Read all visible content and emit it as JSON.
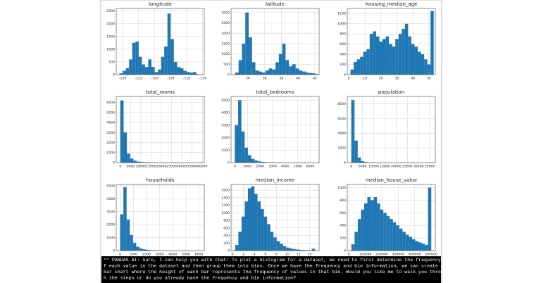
{
  "chart_data": [
    {
      "type": "histogram",
      "title": "longitude",
      "color": "#1f77b4",
      "grid": true,
      "bins": [
        -124.4,
        -124,
        -123.6,
        -123.2,
        -122.8,
        -122.4,
        -122,
        -121.6,
        -121.2,
        -120.8,
        -120.4,
        -120,
        -119.6,
        -119.2,
        -118.8,
        -118.4,
        -118,
        -117.6,
        -117.2,
        -116.8,
        -116.4,
        -116,
        -115.6,
        -115.2,
        -114.8,
        -114.4
      ],
      "values": [
        50,
        150,
        250,
        600,
        1250,
        1300,
        700,
        400,
        300,
        600,
        300,
        100,
        200,
        700,
        1100,
        2400,
        1400,
        500,
        300,
        250,
        150,
        100,
        80,
        100,
        20
      ],
      "xlim": [
        -124.8,
        -113.8
      ],
      "xticks": [
        -124,
        -122,
        -120,
        -118,
        -116,
        -114
      ],
      "ylim": [
        0,
        2600
      ],
      "yticks": [
        0,
        500,
        1000,
        1500,
        2000,
        2500
      ]
    },
    {
      "type": "histogram",
      "title": "latitude",
      "color": "#1f77b4",
      "grid": true,
      "bins": [
        32.5,
        32.9,
        33.3,
        33.7,
        34.1,
        34.5,
        34.9,
        35.3,
        35.7,
        36.1,
        36.5,
        36.9,
        37.3,
        37.7,
        38.1,
        38.5,
        38.9,
        39.3,
        39.7,
        40.1,
        40.5,
        40.9,
        41.3,
        41.7,
        42.1,
        42.5
      ],
      "values": [
        100,
        700,
        1500,
        3000,
        1800,
        600,
        200,
        150,
        100,
        200,
        300,
        250,
        600,
        1000,
        1500,
        700,
        400,
        500,
        300,
        200,
        150,
        100,
        80,
        60,
        30
      ],
      "xlim": [
        32,
        42.5
      ],
      "xticks": [
        34,
        36,
        38,
        40,
        42
      ],
      "ylim": [
        0,
        3200
      ],
      "yticks": [
        0,
        500,
        1000,
        1500,
        2000,
        2500,
        3000
      ]
    },
    {
      "type": "histogram",
      "title": "housing_median_age",
      "color": "#1f77b4",
      "grid": true,
      "bins": [
        1,
        3,
        5,
        7,
        9,
        11,
        13,
        15,
        17,
        19,
        21,
        23,
        25,
        27,
        29,
        31,
        33,
        35,
        37,
        39,
        41,
        43,
        45,
        47,
        49,
        51,
        53
      ],
      "values": [
        100,
        250,
        300,
        350,
        450,
        500,
        800,
        850,
        750,
        650,
        700,
        750,
        600,
        550,
        700,
        800,
        900,
        1000,
        750,
        600,
        550,
        450,
        400,
        300,
        200,
        1250
      ],
      "xlim": [
        -1,
        54
      ],
      "xticks": [
        0,
        10,
        20,
        30,
        40,
        50
      ],
      "ylim": [
        0,
        1300
      ],
      "yticks": [
        0,
        200,
        400,
        600,
        800,
        1000,
        1200
      ]
    },
    {
      "type": "histogram",
      "title": "total_rooms",
      "color": "#1f77b4",
      "grid": true,
      "bins": [
        0,
        1600,
        3200,
        4800,
        6400,
        8000,
        9600,
        11200,
        12800,
        14400,
        16000,
        17600,
        19200,
        20800,
        22400,
        24000,
        25600,
        27200,
        28800,
        30400,
        32000,
        33600,
        35200,
        36800,
        38400,
        40000
      ],
      "values": [
        6200,
        3000,
        900,
        400,
        200,
        100,
        70,
        40,
        30,
        20,
        10,
        8,
        5,
        4,
        3,
        2,
        2,
        1,
        1,
        1,
        0,
        0,
        0,
        0,
        1
      ],
      "xlim": [
        -2000,
        41000
      ],
      "xticks": [
        0,
        5000,
        10000,
        15000,
        20000,
        25000,
        30000,
        35000,
        40000
      ],
      "ylim": [
        0,
        6600
      ],
      "yticks": [
        0,
        1000,
        2000,
        3000,
        4000,
        5000,
        6000
      ]
    },
    {
      "type": "histogram",
      "title": "total_bedrooms",
      "color": "#1f77b4",
      "grid": true,
      "bins": [
        0,
        260,
        520,
        780,
        1040,
        1300,
        1560,
        1820,
        2080,
        2340,
        2600,
        2860,
        3120,
        3380,
        3640,
        3900,
        4160,
        4420,
        4680,
        4940,
        5200,
        5460,
        5720,
        5980,
        6240,
        6500
      ],
      "values": [
        3000,
        5000,
        2500,
        1200,
        600,
        300,
        180,
        100,
        60,
        40,
        25,
        15,
        10,
        8,
        5,
        3,
        2,
        2,
        1,
        1,
        0,
        0,
        0,
        0,
        1
      ],
      "xlim": [
        -300,
        6700
      ],
      "xticks": [
        0,
        1000,
        2000,
        3000,
        4000,
        5000,
        6000
      ],
      "ylim": [
        0,
        5300
      ],
      "yticks": [
        0,
        1000,
        2000,
        3000,
        4000,
        5000
      ]
    },
    {
      "type": "histogram",
      "title": "population",
      "color": "#1f77b4",
      "grid": true,
      "bins": [
        0,
        1428,
        2856,
        4284,
        5712,
        7140,
        8568,
        9996,
        11424,
        12852,
        14280,
        15708,
        17136,
        18564,
        19992,
        21420,
        22848,
        24276,
        25704,
        27132,
        28560,
        29988,
        31416,
        32844,
        34272,
        35700
      ],
      "values": [
        8500,
        3000,
        700,
        200,
        80,
        40,
        20,
        10,
        5,
        3,
        2,
        1,
        1,
        1,
        0,
        0,
        0,
        0,
        0,
        0,
        0,
        0,
        0,
        0,
        1
      ],
      "xlim": [
        -1800,
        37500
      ],
      "xticks": [
        0,
        5000,
        10000,
        15000,
        20000,
        25000,
        30000,
        35000
      ],
      "ylim": [
        0,
        9000
      ],
      "yticks": [
        0,
        2000,
        4000,
        6000,
        8000
      ]
    },
    {
      "type": "histogram",
      "title": "households",
      "color": "#1f77b4",
      "grid": true,
      "bins": [
        0,
        244,
        488,
        732,
        976,
        1220,
        1464,
        1708,
        1952,
        2196,
        2440,
        2684,
        2928,
        3172,
        3416,
        3660,
        3904,
        4148,
        4392,
        4636,
        4880,
        5124,
        5368,
        5612,
        5856,
        6100
      ],
      "values": [
        2800,
        4900,
        2400,
        1200,
        600,
        300,
        170,
        100,
        60,
        40,
        25,
        15,
        10,
        7,
        5,
        3,
        2,
        2,
        1,
        1,
        0,
        0,
        0,
        0,
        1
      ],
      "xlim": [
        -300,
        6400
      ],
      "xticks": [
        0,
        1000,
        2000,
        3000,
        4000,
        5000,
        6000
      ],
      "ylim": [
        0,
        5100
      ],
      "yticks": [
        0,
        1000,
        2000,
        3000,
        4000,
        5000
      ]
    },
    {
      "type": "histogram",
      "title": "median_income",
      "color": "#1f77b4",
      "grid": true,
      "bins": [
        0.5,
        1.08,
        1.66,
        2.24,
        2.82,
        3.4,
        3.98,
        4.56,
        5.14,
        5.72,
        6.3,
        6.88,
        7.46,
        8.04,
        8.62,
        9.2,
        9.78,
        10.36,
        10.94,
        11.52,
        12.1,
        12.68,
        13.26,
        13.84,
        14.42,
        15
      ],
      "values": [
        150,
        500,
        900,
        1300,
        1650,
        1700,
        1500,
        1300,
        1100,
        900,
        700,
        500,
        350,
        250,
        180,
        120,
        80,
        60,
        40,
        30,
        20,
        15,
        10,
        8,
        50
      ],
      "xlim": [
        -0.25,
        15.75
      ],
      "xticks": [
        0,
        2,
        4,
        6,
        8,
        10,
        12,
        14
      ],
      "ylim": [
        0,
        1750
      ],
      "yticks": [
        0,
        200,
        400,
        600,
        800,
        1000,
        1200,
        1400,
        1600
      ]
    },
    {
      "type": "histogram",
      "title": "median_house_value",
      "color": "#1f77b4",
      "grid": true,
      "bins": [
        15000,
        34400,
        53800,
        73200,
        92600,
        112000,
        131400,
        150800,
        170200,
        189600,
        209000,
        228400,
        247800,
        267200,
        286600,
        306000,
        325400,
        344800,
        364200,
        383600,
        403000,
        422400,
        441800,
        461200,
        480600,
        500000
      ],
      "values": [
        100,
        300,
        500,
        650,
        750,
        850,
        800,
        850,
        750,
        650,
        600,
        550,
        500,
        450,
        400,
        350,
        300,
        250,
        220,
        180,
        150,
        130,
        110,
        90,
        1000
      ],
      "xlim": [
        -10000,
        525000
      ],
      "xticks": [
        0,
        100000,
        200000,
        300000,
        400000,
        500000
      ],
      "ylim": [
        0,
        1050
      ],
      "yticks": [
        0,
        200,
        400,
        600,
        800,
        1000
      ]
    }
  ],
  "console": {
    "lines": [
      "** PANDAS AI: Sure, I can help you with that! To plot a histogram for a dataset, we need to first determine the frequency o",
      "f each value in the dataset and then group them into bins. Once we have the frequency and bin information, we can create a",
      "bar chart where the height of each bar represents the frequency of values in that bin. Would you like me to walk you throug",
      "h the steps or do you already have the frequency and bin information?"
    ]
  }
}
